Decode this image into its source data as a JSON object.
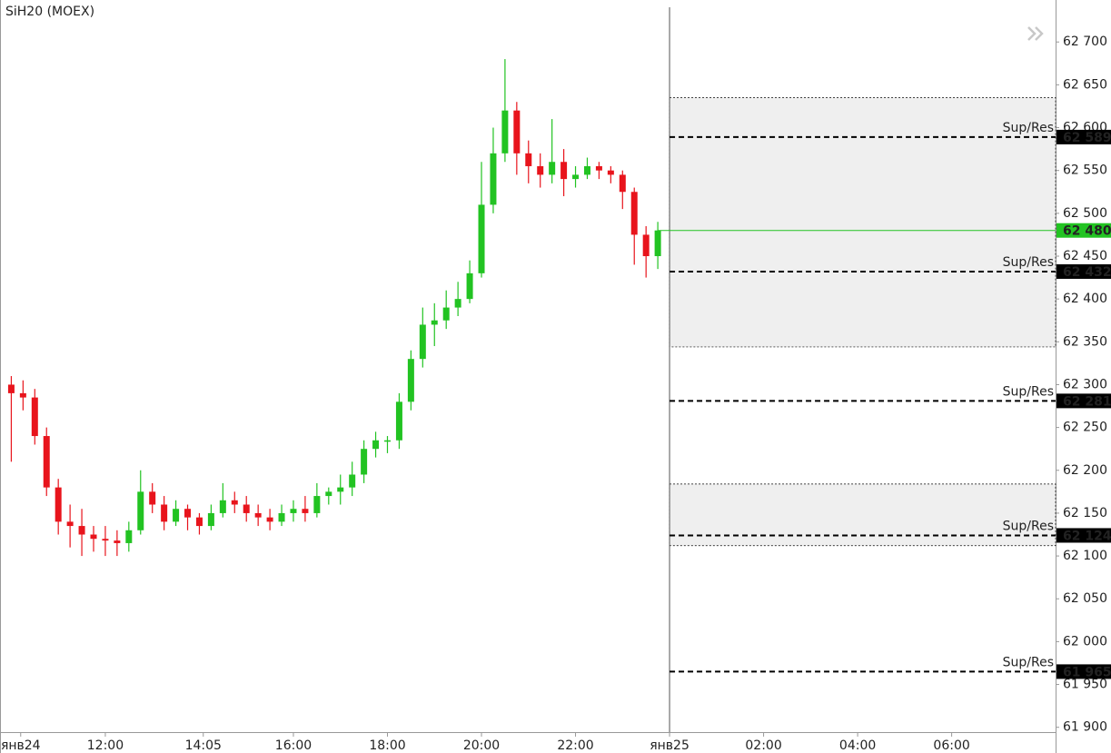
{
  "chart_data": {
    "type": "candlestick",
    "title": "SiH20 (MOEX)",
    "up_color": "#22c322",
    "down_color": "#e8141c",
    "x": [
      10.0,
      10.25,
      10.5,
      10.75,
      11.0,
      11.25,
      11.5,
      11.75,
      12.0,
      12.25,
      12.5,
      12.75,
      13.0,
      13.25,
      13.5,
      13.75,
      14.0,
      14.25,
      14.5,
      14.75,
      15.0,
      15.25,
      15.5,
      15.75,
      16.0,
      16.25,
      16.5,
      16.75,
      17.0,
      17.25,
      17.5,
      17.75,
      18.0,
      18.25,
      18.5,
      18.75,
      19.0,
      19.25,
      19.5,
      19.75,
      20.0,
      20.25,
      20.5,
      20.75,
      21.0,
      21.25,
      21.5,
      21.75,
      22.0,
      22.25,
      22.5,
      22.75,
      23.0,
      23.25,
      23.5,
      23.75
    ],
    "open": [
      62300,
      62290,
      62285,
      62240,
      62180,
      62140,
      62135,
      62125,
      62120,
      62118,
      62115,
      62130,
      62175,
      62160,
      62140,
      62155,
      62145,
      62135,
      62150,
      62165,
      62160,
      62150,
      62145,
      62140,
      62150,
      62155,
      62150,
      62170,
      62175,
      62180,
      62195,
      62225,
      62235,
      62235,
      62280,
      62330,
      62370,
      62375,
      62390,
      62400,
      62430,
      62510,
      62570,
      62620,
      62570,
      62555,
      62545,
      62560,
      62540,
      62545,
      62555,
      62550,
      62545,
      62525,
      62475,
      62450
    ],
    "high": [
      62310,
      62305,
      62295,
      62250,
      62190,
      62160,
      62155,
      62135,
      62135,
      62130,
      62140,
      62200,
      62185,
      62170,
      62165,
      62160,
      62150,
      62160,
      62185,
      62175,
      62170,
      62160,
      62155,
      62160,
      62165,
      62170,
      62185,
      62180,
      62195,
      62210,
      62235,
      62245,
      62240,
      62290,
      62340,
      62390,
      62395,
      62410,
      62420,
      62445,
      62560,
      62600,
      62680,
      62630,
      62585,
      62570,
      62610,
      62575,
      62555,
      62565,
      62560,
      62555,
      62550,
      62530,
      62485,
      62490
    ],
    "low": [
      62210,
      62270,
      62230,
      62170,
      62125,
      62110,
      62100,
      62105,
      62100,
      62100,
      62105,
      62125,
      62150,
      62130,
      62135,
      62130,
      62125,
      62130,
      62145,
      62150,
      62140,
      62135,
      62130,
      62135,
      62140,
      62140,
      62145,
      62160,
      62160,
      62170,
      62185,
      62215,
      62220,
      62225,
      62270,
      62320,
      62345,
      62365,
      62380,
      62395,
      62425,
      62500,
      62560,
      62545,
      62535,
      62530,
      62535,
      62520,
      62530,
      62540,
      62540,
      62535,
      62505,
      62440,
      62425,
      62435
    ],
    "close": [
      62290,
      62285,
      62240,
      62180,
      62140,
      62135,
      62125,
      62120,
      62118,
      62115,
      62130,
      62175,
      62160,
      62140,
      62155,
      62145,
      62135,
      62150,
      62165,
      62160,
      62150,
      62145,
      62140,
      62150,
      62155,
      62150,
      62170,
      62175,
      62180,
      62195,
      62225,
      62235,
      62235,
      62280,
      62330,
      62370,
      62375,
      62390,
      62400,
      62430,
      62510,
      62570,
      62620,
      62570,
      62555,
      62545,
      62560,
      62540,
      62545,
      62555,
      62550,
      62545,
      62525,
      62475,
      62450,
      62480
    ],
    "xlim": [
      9.76,
      32.21
    ],
    "xticks": [
      {
        "value": 10.2,
        "label": "янв24"
      },
      {
        "value": 12,
        "label": "12:00"
      },
      {
        "value": 14.083,
        "label": "14:05"
      },
      {
        "value": 16,
        "label": "16:00"
      },
      {
        "value": 18,
        "label": "18:00"
      },
      {
        "value": 20,
        "label": "20:00"
      },
      {
        "value": 22,
        "label": "22:00"
      },
      {
        "value": 24,
        "label": "янв25"
      },
      {
        "value": 26,
        "label": "02:00"
      },
      {
        "value": 28,
        "label": "04:00"
      },
      {
        "value": 30,
        "label": "06:00"
      }
    ],
    "ylim": [
      61870,
      62749
    ],
    "yticks": [
      {
        "value": 61900,
        "label": "61 900"
      },
      {
        "value": 61950,
        "label": "61 950"
      },
      {
        "value": 62000,
        "label": "62 000"
      },
      {
        "value": 62050,
        "label": "62 050"
      },
      {
        "value": 62100,
        "label": "62 100"
      },
      {
        "value": 62150,
        "label": "62 150"
      },
      {
        "value": 62200,
        "label": "62 200"
      },
      {
        "value": 62250,
        "label": "62 250"
      },
      {
        "value": 62300,
        "label": "62 300"
      },
      {
        "value": 62350,
        "label": "62 350"
      },
      {
        "value": 62400,
        "label": "62 400"
      },
      {
        "value": 62450,
        "label": "62 450"
      },
      {
        "value": 62500,
        "label": "62 500"
      },
      {
        "value": 62550,
        "label": "62 550"
      },
      {
        "value": 62600,
        "label": "62 600"
      },
      {
        "value": 62650,
        "label": "62 650"
      },
      {
        "value": 62700,
        "label": "62 700"
      }
    ],
    "zone_start": 24,
    "zones": [
      {
        "from": 62635,
        "to": 62344
      },
      {
        "from": 62184,
        "to": 62112
      }
    ],
    "levels": [
      {
        "name": "Sup/Res",
        "value": 62589,
        "label": "62 589"
      },
      {
        "name": "Sup/Res",
        "value": 62432,
        "label": "62 432"
      },
      {
        "name": "Sup/Res",
        "value": 62281,
        "label": "62 281"
      },
      {
        "name": "Sup/Res",
        "value": 62124,
        "label": "62 124"
      },
      {
        "name": "Sup/Res",
        "value": 61965,
        "label": "61 965"
      }
    ],
    "last_price": {
      "value": 62480,
      "label": "62 480",
      "color": "#22c322"
    }
  }
}
